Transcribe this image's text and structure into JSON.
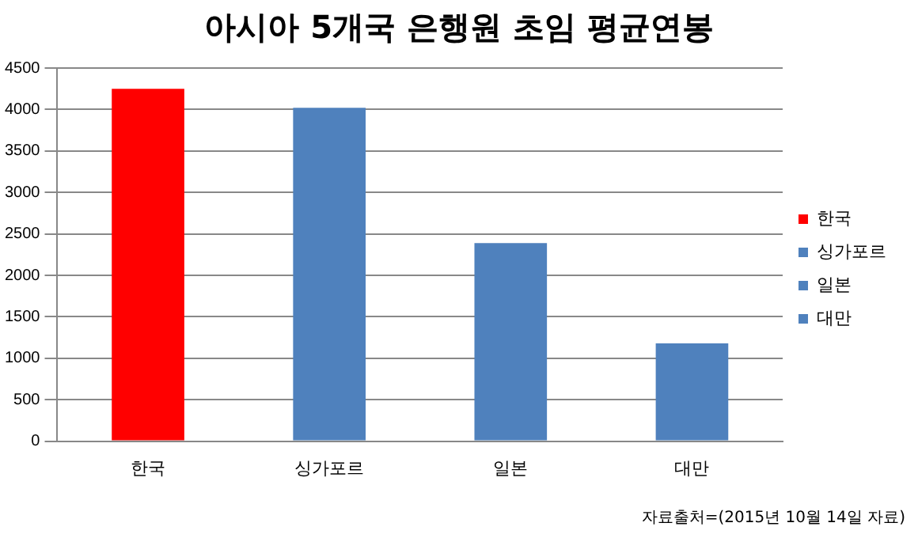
{
  "chart_data": {
    "type": "bar",
    "title": "아시아 5개국 은행원 초임 평균연봉",
    "categories": [
      "한국",
      "싱가포르",
      "일본",
      "대만"
    ],
    "series": [
      {
        "name": "한국",
        "color": "#ff0000",
        "values": [
          4250,
          null,
          null,
          null
        ]
      },
      {
        "name": "싱가포르",
        "color": "#4f81bd",
        "values": [
          null,
          4020,
          null,
          null
        ]
      },
      {
        "name": "일본",
        "color": "#4f81bd",
        "values": [
          null,
          null,
          2390,
          null
        ]
      },
      {
        "name": "대만",
        "color": "#4f81bd",
        "values": [
          null,
          null,
          null,
          1180
        ]
      }
    ],
    "ylim": [
      0,
      4500
    ],
    "yticks": [
      0,
      500,
      1000,
      1500,
      2000,
      2500,
      3000,
      3500,
      4000,
      4500
    ],
    "grid": "y",
    "legend": "right",
    "annotations": [
      "자료출처=(2015년 10월 14일 자료)"
    ]
  }
}
